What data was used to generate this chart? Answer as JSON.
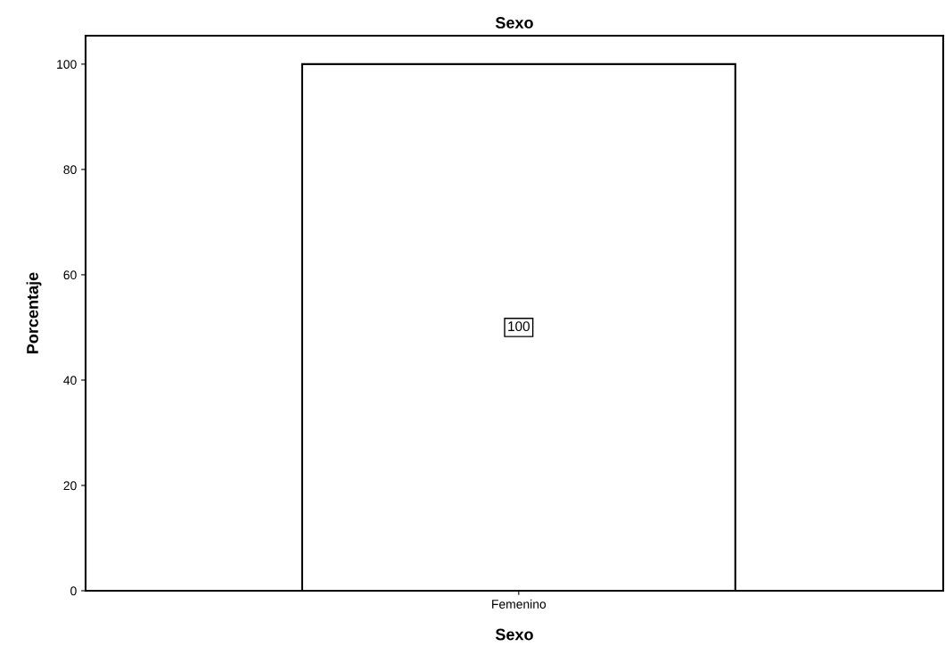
{
  "chart_data": {
    "type": "bar",
    "title": "Sexo",
    "xlabel": "Sexo",
    "ylabel": "Porcentaje",
    "categories": [
      "Femenino"
    ],
    "values": [
      100
    ],
    "color": "#ffffff",
    "ylim": [
      0,
      105.4
    ],
    "yticks": [
      0,
      20,
      40,
      60,
      80,
      100
    ],
    "grid": false,
    "data_labels": true
  }
}
